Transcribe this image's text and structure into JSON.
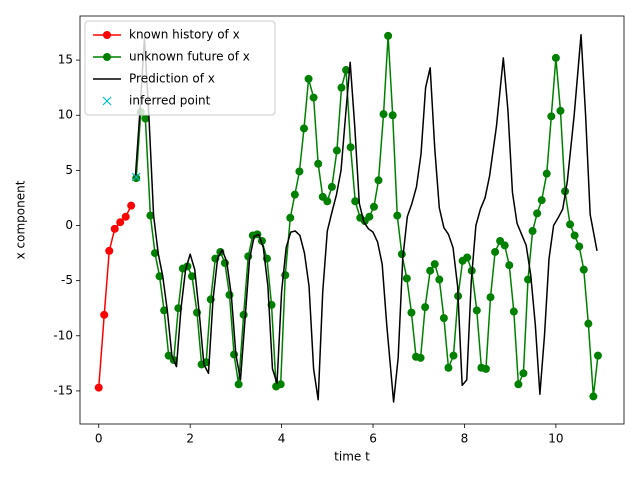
{
  "chart_data": {
    "type": "line",
    "xlabel": "time t",
    "ylabel": "x component",
    "xlim": [
      -0.41,
      11.49
    ],
    "ylim": [
      -18.0,
      19.0
    ],
    "xticks": [
      0,
      2,
      4,
      6,
      8,
      10
    ],
    "yticks": [
      -15,
      -10,
      -5,
      0,
      5,
      10,
      15
    ],
    "legend": "upper left",
    "series": [
      {
        "name": "known history of x",
        "color": "#ff0000",
        "marker": "o",
        "x": [
          0,
          0.12,
          0.23,
          0.35,
          0.47,
          0.59,
          0.71
        ],
        "values": [
          -14.7,
          -8.1,
          -2.3,
          -0.3,
          0.3,
          0.8,
          1.8
        ]
      },
      {
        "name": "unknown future of x",
        "color": "#008000",
        "marker": "o",
        "x": [
          0.82,
          0.92,
          1.02,
          1.13,
          1.23,
          1.33,
          1.43,
          1.53,
          1.64,
          1.74,
          1.84,
          1.94,
          2.04,
          2.15,
          2.25,
          2.35,
          2.45,
          2.55,
          2.66,
          2.76,
          2.86,
          2.96,
          3.06,
          3.17,
          3.27,
          3.37,
          3.47,
          3.57,
          3.68,
          3.78,
          3.88,
          3.98,
          4.08,
          4.19,
          4.29,
          4.39,
          4.49,
          4.59,
          4.7,
          4.8,
          4.9,
          5.0,
          5.1,
          5.21,
          5.31,
          5.41,
          5.51,
          5.61,
          5.72,
          5.82,
          5.92,
          6.02,
          6.12,
          6.23,
          6.33,
          6.43,
          6.53,
          6.63,
          6.74,
          6.84,
          6.94,
          7.04,
          7.14,
          7.25,
          7.35,
          7.45,
          7.55,
          7.65,
          7.76,
          7.86,
          7.96,
          8.06,
          8.16,
          8.27,
          8.37,
          8.47,
          8.57,
          8.67,
          8.78,
          8.88,
          8.98,
          9.08,
          9.18,
          9.29,
          9.39,
          9.49,
          9.59,
          9.69,
          9.8,
          9.9,
          10.0,
          10.1,
          10.2,
          10.31,
          10.41,
          10.51,
          10.61,
          10.71,
          10.82,
          10.92
        ],
        "values": [
          4.3,
          10.3,
          9.7,
          0.9,
          -2.5,
          -4.6,
          -7.7,
          -11.8,
          -12.2,
          -7.5,
          -3.9,
          -3.7,
          -4.6,
          -7.9,
          -12.6,
          -12.4,
          -6.7,
          -3.0,
          -2.4,
          -3.4,
          -6.3,
          -11.7,
          -14.4,
          -8.1,
          -2.8,
          -0.9,
          -0.8,
          -1.4,
          -3.0,
          -7.2,
          -14.6,
          -14.4,
          -4.5,
          0.7,
          2.8,
          4.9,
          8.8,
          13.3,
          11.6,
          5.6,
          2.6,
          2.2,
          3.5,
          6.8,
          12.5,
          14.1,
          7.1,
          2.2,
          0.7,
          0.4,
          0.8,
          1.7,
          4.1,
          10.1,
          17.2,
          10.0,
          0.9,
          -2.6,
          -4.8,
          -7.9,
          -11.9,
          -12.0,
          -7.4,
          -4.1,
          -3.5,
          -4.9,
          -8.4,
          -12.9,
          -11.8,
          -6.4,
          -3.2,
          -2.9,
          -4.1,
          -7.7,
          -12.9,
          -13.0,
          -6.5,
          -2.4,
          -1.4,
          -1.8,
          -3.6,
          -7.8,
          -14.4,
          -13.4,
          -4.9,
          -0.5,
          1.1,
          2.3,
          4.7,
          9.9,
          15.2,
          10.4,
          3.1,
          0.1,
          -0.9,
          -1.9,
          -4.0,
          -8.9,
          -15.5,
          -11.8
        ]
      },
      {
        "name": "Prediction of x",
        "color": "#000000",
        "marker": "none",
        "x": [
          0.8,
          0.9,
          1.0,
          1.1,
          1.2,
          1.3,
          1.4,
          1.5,
          1.6,
          1.7,
          1.8,
          1.9,
          2.0,
          2.1,
          2.2,
          2.3,
          2.4,
          2.5,
          2.6,
          2.7,
          2.8,
          2.9,
          3.0,
          3.1,
          3.2,
          3.3,
          3.4,
          3.5,
          3.6,
          3.7,
          3.8,
          3.9,
          4.0,
          4.1,
          4.2,
          4.3,
          4.4,
          4.5,
          4.6,
          4.7,
          4.8,
          4.9,
          5.0,
          5.1,
          5.2,
          5.3,
          5.4,
          5.5,
          5.6,
          5.7,
          5.8,
          5.9,
          6.0,
          6.1,
          6.2,
          6.3,
          6.45,
          6.55,
          6.65,
          6.75,
          6.85,
          6.95,
          7.05,
          7.15,
          7.25,
          7.35,
          7.45,
          7.55,
          7.65,
          7.75,
          7.85,
          7.95,
          8.05,
          8.15,
          8.25,
          8.35,
          8.45,
          8.55,
          8.7,
          8.85,
          8.95,
          9.05,
          9.15,
          9.25,
          9.35,
          9.45,
          9.55,
          9.65,
          9.75,
          9.85,
          9.95,
          10.05,
          10.15,
          10.25,
          10.4,
          10.55,
          10.65,
          10.75,
          10.9
        ],
        "values": [
          4.3,
          10.3,
          17.0,
          9.7,
          0.9,
          -2.5,
          -4.6,
          -7.7,
          -11.8,
          -12.8,
          -7.5,
          -4.0,
          -2.6,
          -4.0,
          -8.0,
          -12.6,
          -13.4,
          -6.7,
          -3.0,
          -2.2,
          -3.3,
          -6.3,
          -11.7,
          -14.0,
          -8.5,
          -3.0,
          -1.0,
          -0.8,
          -2.0,
          -5.5,
          -13.0,
          -14.3,
          -6.0,
          -2.0,
          -0.6,
          -0.5,
          -0.9,
          -2.5,
          -5.5,
          -13.0,
          -15.8,
          -6.0,
          -0.5,
          1.2,
          2.8,
          5.0,
          10.0,
          14.8,
          9.0,
          2.0,
          0.3,
          -0.3,
          -0.6,
          -1.5,
          -3.5,
          -9.0,
          -16.0,
          -12.0,
          -3.0,
          0.8,
          2.0,
          3.5,
          6.5,
          12.5,
          14.3,
          7.0,
          1.6,
          -0.2,
          -0.8,
          -2.0,
          -5.5,
          -14.5,
          -14.0,
          -5.0,
          0.0,
          1.5,
          2.5,
          4.5,
          9.0,
          15.2,
          10.5,
          3.0,
          0.2,
          -0.8,
          -1.8,
          -4.5,
          -9.0,
          -15.3,
          -10.0,
          -3.0,
          0.0,
          0.7,
          1.5,
          4.0,
          10.0,
          17.3,
          10.0,
          1.0,
          -2.3
        ]
      },
      {
        "name": "inferred point",
        "color": "#00bfbf",
        "marker": "x",
        "linestyle": "none",
        "x": [
          0.82
        ],
        "values": [
          4.4
        ]
      }
    ]
  }
}
